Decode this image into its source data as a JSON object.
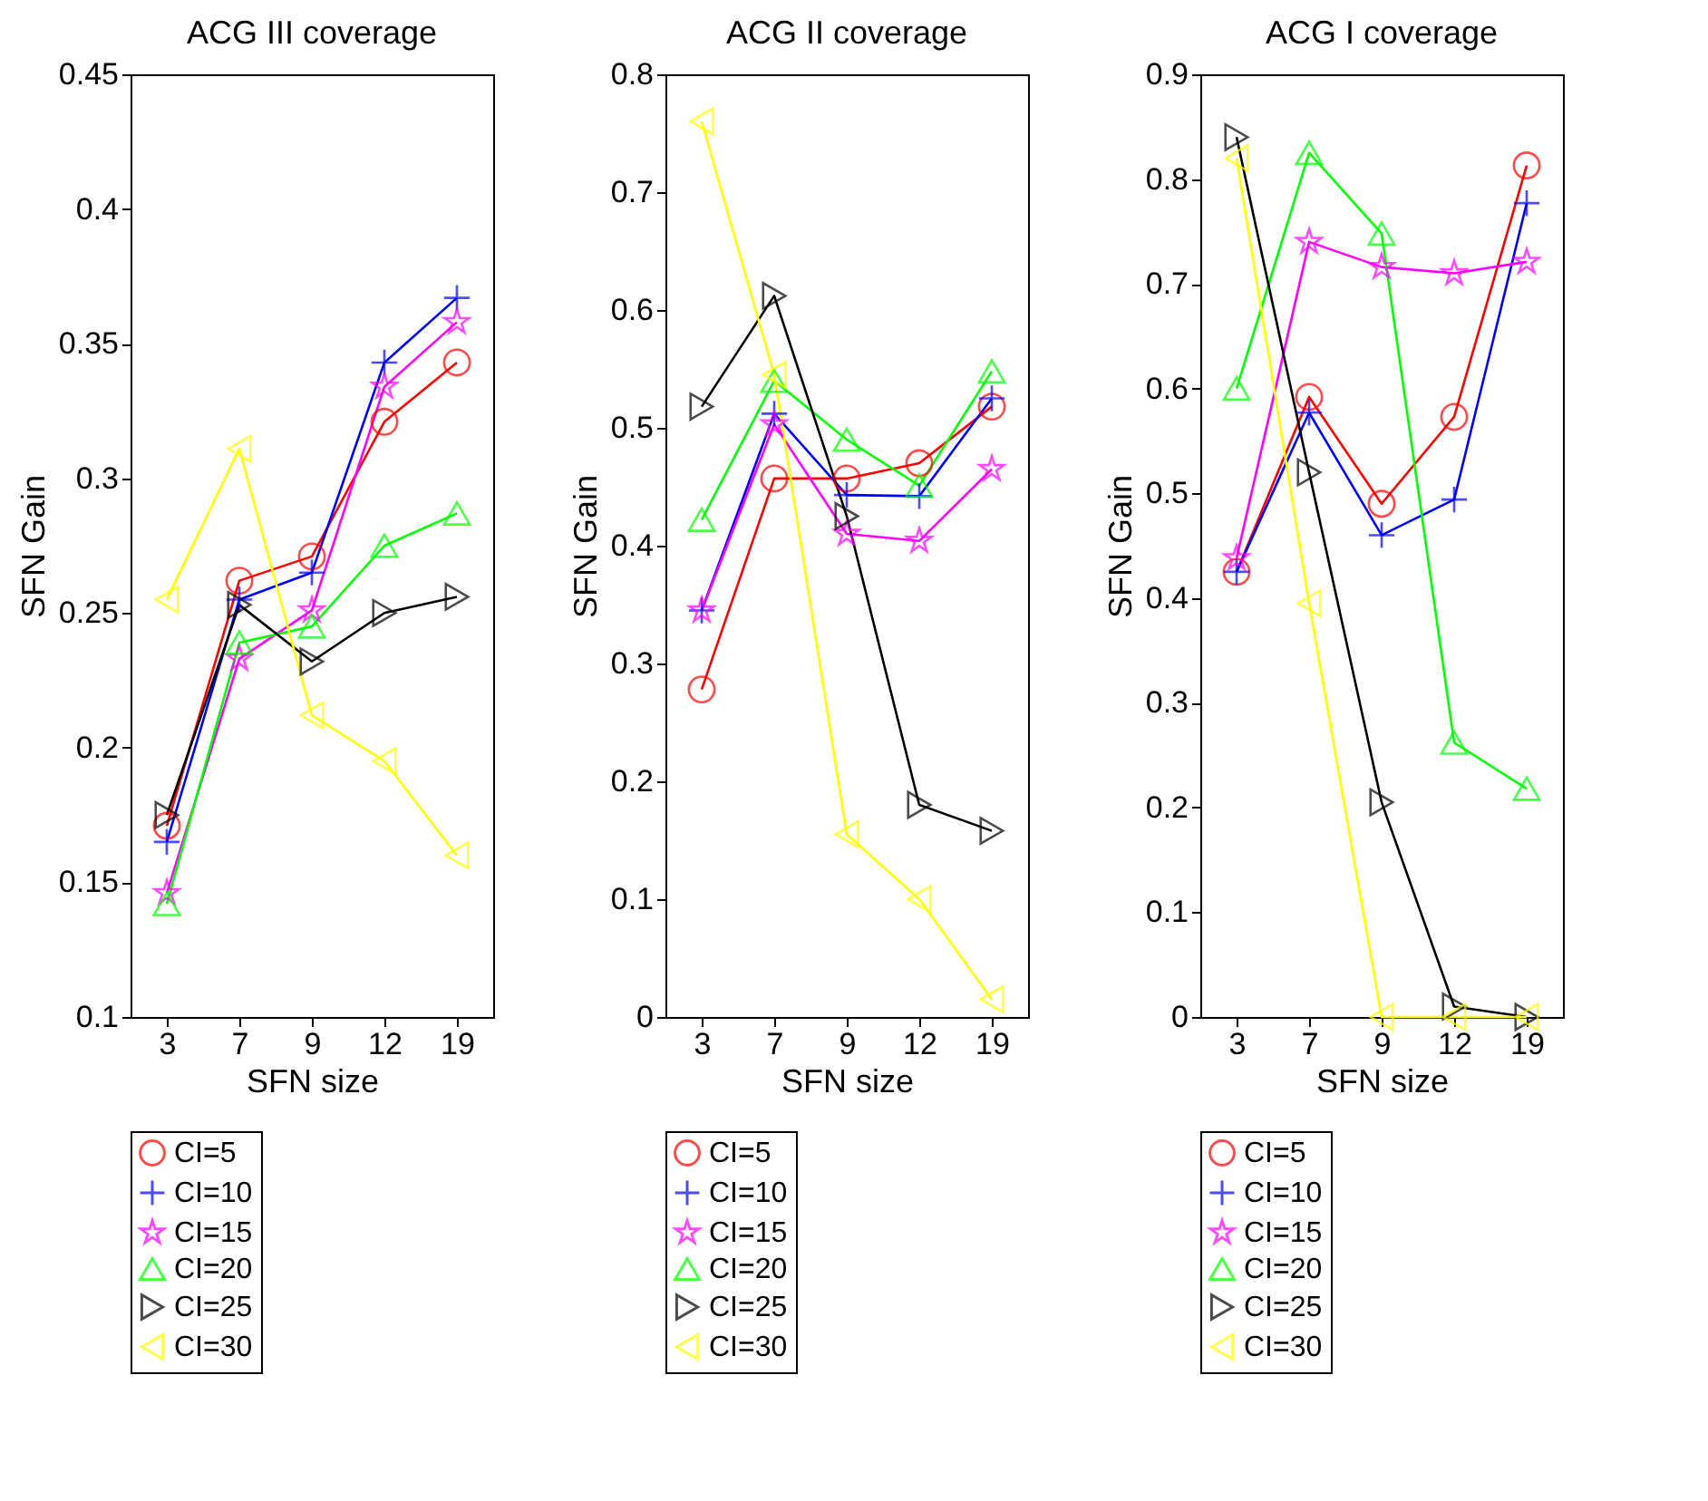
{
  "chart_data": [
    {
      "type": "line",
      "title": "ACG III coverage",
      "xlabel": "SFN size",
      "ylabel": "SFN Gain",
      "categories": [
        "3",
        "7",
        "9",
        "12",
        "19"
      ],
      "ylim": [
        0.1,
        0.45
      ],
      "yticks": [
        0.1,
        0.15,
        0.2,
        0.25,
        0.3,
        0.35,
        0.4,
        0.45
      ],
      "grid": false,
      "legend": "bottom left",
      "series": [
        {
          "name": "CI=5",
          "color": "#ff0000",
          "marker": "circle",
          "values": [
            0.171,
            0.262,
            0.271,
            0.321,
            0.343
          ]
        },
        {
          "name": "CI=10",
          "color": "#0000ff",
          "marker": "cross",
          "values": [
            0.165,
            0.255,
            0.265,
            0.343,
            0.367
          ]
        },
        {
          "name": "CI=15",
          "color": "#ff00ff",
          "marker": "star",
          "values": [
            0.146,
            0.233,
            0.251,
            0.334,
            0.358
          ]
        },
        {
          "name": "CI=20",
          "color": "#00ff00",
          "marker": "triangle",
          "values": [
            0.142,
            0.239,
            0.245,
            0.275,
            0.287
          ]
        },
        {
          "name": "CI=25",
          "color": "#000000",
          "marker": "triangle-right",
          "values": [
            0.175,
            0.253,
            0.232,
            0.25,
            0.256
          ]
        },
        {
          "name": "CI=30",
          "color": "#ffff00",
          "marker": "triangle-left",
          "values": [
            0.255,
            0.311,
            0.212,
            0.195,
            0.16
          ]
        }
      ]
    },
    {
      "type": "line",
      "title": "ACG II coverage",
      "xlabel": "SFN size",
      "ylabel": "SFN Gain",
      "categories": [
        "3",
        "7",
        "9",
        "12",
        "19"
      ],
      "ylim": [
        0,
        0.8
      ],
      "yticks": [
        0,
        0.1,
        0.2,
        0.3,
        0.4,
        0.5,
        0.6,
        0.7,
        0.8
      ],
      "grid": false,
      "legend": "bottom left",
      "series": [
        {
          "name": "CI=5",
          "color": "#ff0000",
          "marker": "circle",
          "values": [
            0.278,
            0.457,
            0.457,
            0.47,
            0.518
          ]
        },
        {
          "name": "CI=10",
          "color": "#0000ff",
          "marker": "cross",
          "values": [
            0.345,
            0.512,
            0.443,
            0.442,
            0.525
          ]
        },
        {
          "name": "CI=15",
          "color": "#ff00ff",
          "marker": "star",
          "values": [
            0.345,
            0.503,
            0.41,
            0.404,
            0.465
          ]
        },
        {
          "name": "CI=20",
          "color": "#00ff00",
          "marker": "triangle",
          "values": [
            0.422,
            0.54,
            0.49,
            0.451,
            0.548
          ]
        },
        {
          "name": "CI=25",
          "color": "#000000",
          "marker": "triangle-right",
          "values": [
            0.518,
            0.612,
            0.425,
            0.18,
            0.158
          ]
        },
        {
          "name": "CI=30",
          "color": "#ffff00",
          "marker": "triangle-left",
          "values": [
            0.76,
            0.545,
            0.155,
            0.1,
            0.015
          ]
        }
      ]
    },
    {
      "type": "line",
      "title": "ACG I coverage",
      "xlabel": "SFN size",
      "ylabel": "SFN Gain",
      "categories": [
        "3",
        "7",
        "9",
        "12",
        "19"
      ],
      "ylim": [
        0,
        0.9
      ],
      "yticks": [
        0,
        0.1,
        0.2,
        0.3,
        0.4,
        0.5,
        0.6,
        0.7,
        0.8,
        0.9
      ],
      "grid": false,
      "legend": "bottom left",
      "series": [
        {
          "name": "CI=5",
          "color": "#ff0000",
          "marker": "circle",
          "values": [
            0.425,
            0.592,
            0.49,
            0.573,
            0.813
          ]
        },
        {
          "name": "CI=10",
          "color": "#0000ff",
          "marker": "cross",
          "values": [
            0.425,
            0.577,
            0.46,
            0.494,
            0.777
          ]
        },
        {
          "name": "CI=15",
          "color": "#ff00ff",
          "marker": "star",
          "values": [
            0.438,
            0.74,
            0.716,
            0.71,
            0.721
          ]
        },
        {
          "name": "CI=20",
          "color": "#00ff00",
          "marker": "triangle",
          "values": [
            0.6,
            0.825,
            0.748,
            0.262,
            0.218
          ]
        },
        {
          "name": "CI=25",
          "color": "#000000",
          "marker": "triangle-right",
          "values": [
            0.84,
            0.52,
            0.205,
            0.01,
            0
          ]
        },
        {
          "name": "CI=30",
          "color": "#ffff00",
          "marker": "triangle-left",
          "values": [
            0.82,
            0.395,
            0,
            0,
            0
          ]
        }
      ]
    }
  ]
}
